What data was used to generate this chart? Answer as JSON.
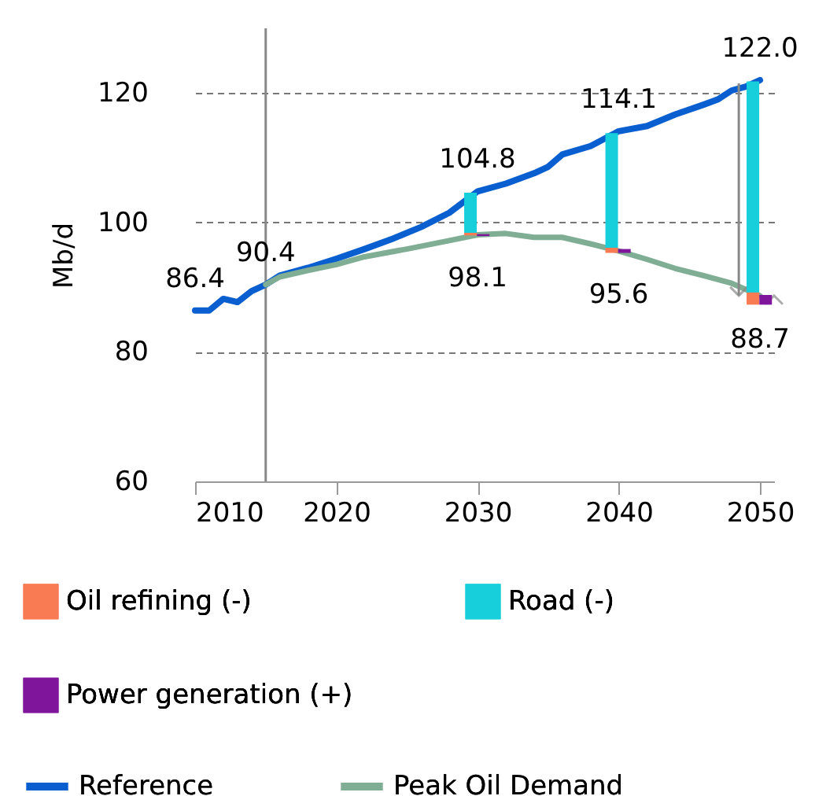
{
  "chart_data": {
    "type": "line",
    "ylabel": "Mb/d",
    "xlim": [
      2010,
      2051
    ],
    "xticks": [
      2010,
      2020,
      2030,
      2040,
      2050
    ],
    "ylim": [
      60,
      130
    ],
    "yticks": [
      60,
      80,
      100,
      120
    ],
    "grid": "y",
    "legend": "bottom",
    "marker": "none",
    "line_style": "solid",
    "ref_lines": [
      {
        "axis": "x",
        "value": 2015,
        "color": "#888888"
      }
    ],
    "series": [
      {
        "name": "Reference",
        "color": "#0a5fd0",
        "x": [
          2010,
          2011,
          2012,
          2013,
          2014,
          2015,
          2016,
          2018,
          2020,
          2022,
          2024,
          2026,
          2028,
          2030,
          2032,
          2034,
          2035,
          2036,
          2038,
          2040,
          2042,
          2044,
          2046,
          2047,
          2048,
          2049,
          2050
        ],
        "values": [
          86.4,
          86.4,
          88.2,
          87.7,
          89.4,
          90.4,
          91.8,
          93.0,
          94.4,
          95.9,
          97.5,
          99.3,
          101.5,
          104.8,
          106.0,
          107.6,
          108.6,
          110.5,
          111.8,
          114.1,
          114.9,
          116.7,
          118.2,
          119.0,
          120.4,
          121.0,
          122.0
        ],
        "value_labels": [
          "86.4",
          null,
          null,
          null,
          null,
          "90.4",
          null,
          null,
          null,
          null,
          null,
          null,
          null,
          "104.8",
          null,
          null,
          null,
          null,
          null,
          "114.1",
          null,
          null,
          null,
          null,
          null,
          null,
          "122.0"
        ]
      },
      {
        "name": "Peak Oil Demand",
        "color": "#7fae94",
        "x": [
          2015,
          2016,
          2018,
          2020,
          2022,
          2025,
          2028,
          2030,
          2032,
          2034,
          2036,
          2038,
          2040,
          2042,
          2044,
          2046,
          2048,
          2050
        ],
        "values": [
          90.4,
          91.6,
          92.6,
          93.5,
          94.7,
          95.9,
          97.2,
          98.1,
          98.3,
          97.7,
          97.7,
          96.7,
          95.6,
          94.3,
          92.9,
          91.8,
          90.6,
          88.7
        ],
        "value_labels": [
          null,
          null,
          null,
          null,
          null,
          null,
          null,
          "98.1",
          null,
          null,
          null,
          null,
          "95.6",
          null,
          null,
          null,
          null,
          "88.7"
        ]
      },
      {
        "name": "Oil refining  (-)",
        "type": "bar",
        "color": "#f97b53",
        "x": [
          2029.5,
          2039.5,
          2049.5
        ],
        "base": [
          98.0,
          95.3,
          87.3
        ],
        "values": [
          0.4,
          0.8,
          1.9
        ]
      },
      {
        "name": "Road (-)",
        "type": "bar",
        "color": "#17cfdb",
        "x": [
          2029.5,
          2039.5,
          2049.5
        ],
        "base": [
          98.4,
          96.1,
          89.2
        ],
        "values": [
          6.2,
          17.7,
          32.6
        ]
      },
      {
        "name": "Power generation (+)",
        "type": "bar",
        "color": "#7f159b",
        "x": [
          2030.4,
          2040.4,
          2050.4
        ],
        "base": [
          97.9,
          95.3,
          87.3
        ],
        "values": [
          0.3,
          0.6,
          1.5
        ]
      }
    ]
  }
}
